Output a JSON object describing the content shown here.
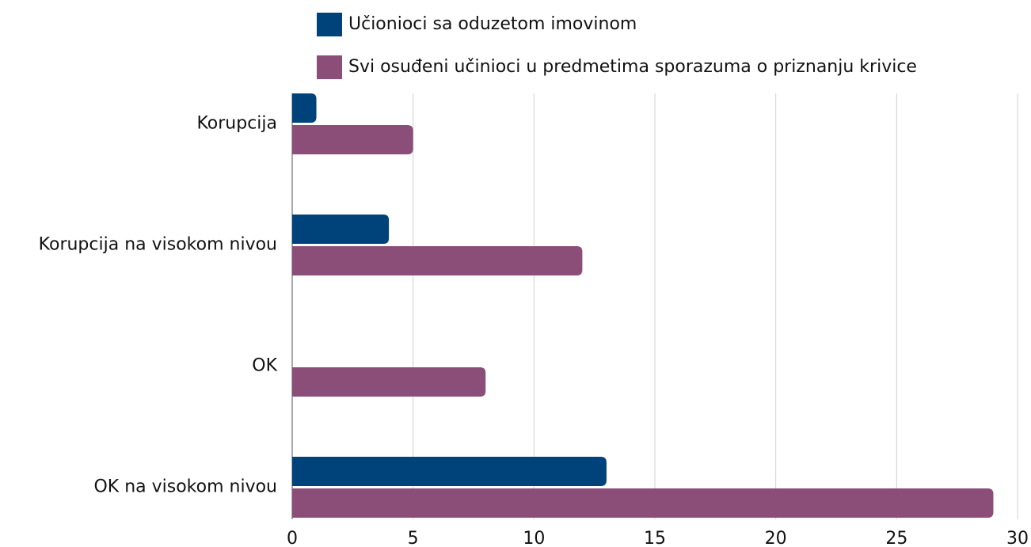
{
  "chart_data": {
    "type": "hbar",
    "categories": [
      "Korupcija",
      "Korupcija na visokom nivou",
      "OK",
      "OK na visokom nivou"
    ],
    "series": [
      {
        "name": "Učionioci sa oduzetom imovinom",
        "color": "#00427a",
        "values": [
          1,
          4,
          0,
          13
        ]
      },
      {
        "name": "Svi osuđeni učinioci u predmetima sporazuma o priznanju krivice",
        "color": "#8b4e78",
        "values": [
          5,
          12,
          8,
          29
        ]
      }
    ],
    "xlim": [
      0,
      30
    ],
    "xticks": [
      0,
      5,
      10,
      15,
      20,
      25,
      30
    ],
    "grid": true,
    "legend": "top"
  }
}
